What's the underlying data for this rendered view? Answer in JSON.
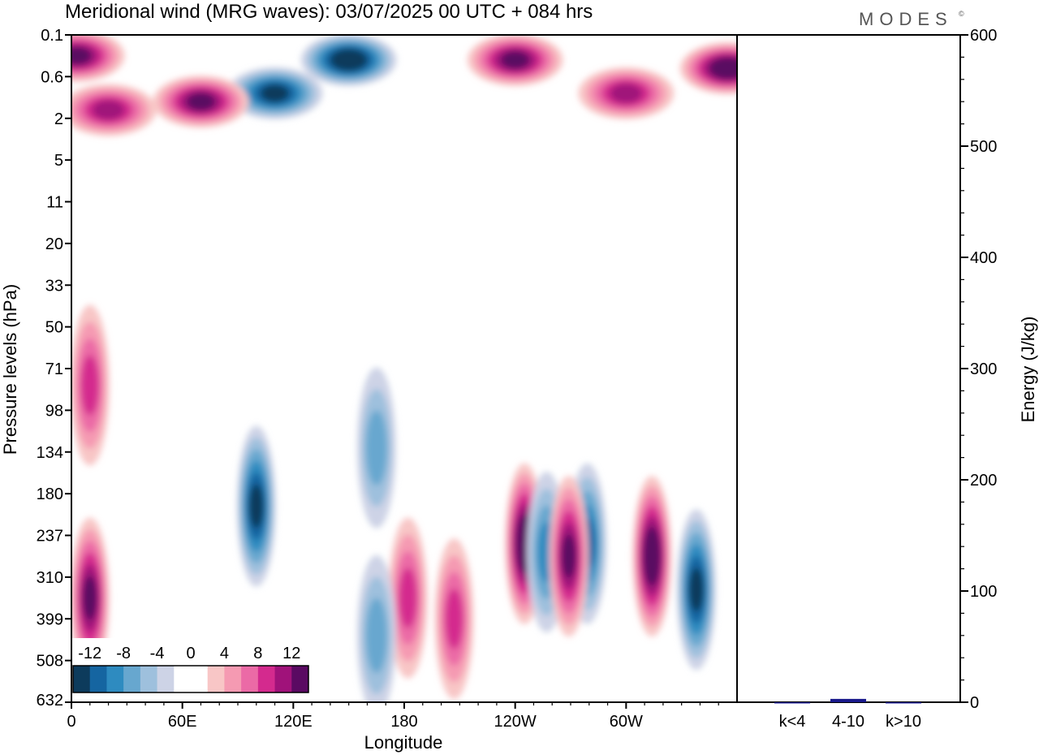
{
  "title": "Meridional wind (MRG waves):  03/07/2025  00 UTC  + 084 hrs",
  "brand": "MODES",
  "brand_mark": "©",
  "chart_data": [
    {
      "type": "heatmap",
      "title": "Meridional wind (MRG waves)",
      "xlabel": "Longitude",
      "ylabel": "Pressure levels (hPa)",
      "x_ticks": [
        "0",
        "60E",
        "120E",
        "180",
        "120W",
        "60W"
      ],
      "x_tick_degrees": [
        0,
        60,
        120,
        180,
        240,
        300
      ],
      "x_range_degrees": [
        0,
        360
      ],
      "y_ticks": [
        "0.1",
        "0.6",
        "2",
        "5",
        "11",
        "20",
        "33",
        "50",
        "71",
        "98",
        "134",
        "180",
        "237",
        "310",
        "399",
        "508",
        "632"
      ],
      "colorbar": {
        "labels": [
          "-12",
          "-8",
          "-4",
          "0",
          "4",
          "8",
          "12"
        ],
        "levels": [
          -14,
          -12,
          -10,
          -8,
          -6,
          -4,
          -2,
          2,
          4,
          6,
          8,
          10,
          12,
          14
        ],
        "colors": [
          "#0d3b5c",
          "#1565a1",
          "#2e8bc0",
          "#67a7cf",
          "#9ec0dd",
          "#cdd3e6",
          "#ffffff",
          "#ffffff",
          "#f8c6c6",
          "#f59ab2",
          "#eb6aa6",
          "#d42a8e",
          "#a0127a",
          "#5a0a62"
        ]
      },
      "features": [
        {
          "type": "positive",
          "lon": 10,
          "level_index": 13.5,
          "peak": 12
        },
        {
          "type": "positive",
          "lon": 10,
          "level_index": 8.4,
          "peak": 8
        },
        {
          "type": "negative",
          "lon": 100,
          "level_index": 11.3,
          "peak": -12
        },
        {
          "type": "negative",
          "lon": 150,
          "level_index": 0.6,
          "peak": -14
        },
        {
          "type": "negative",
          "lon": 110,
          "level_index": 1.4,
          "peak": -12
        },
        {
          "type": "positive",
          "lon": 70,
          "level_index": 1.6,
          "peak": 12
        },
        {
          "type": "positive",
          "lon": 20,
          "level_index": 1.8,
          "peak": 10
        },
        {
          "type": "positive",
          "lon": 245,
          "level_index": 12.2,
          "peak": 14
        },
        {
          "type": "negative",
          "lon": 257,
          "level_index": 12.4,
          "peak": -8
        },
        {
          "type": "negative",
          "lon": 279,
          "level_index": 12.2,
          "peak": -10
        },
        {
          "type": "positive",
          "lon": 269,
          "level_index": 12.5,
          "peak": 12
        },
        {
          "type": "positive",
          "lon": 314,
          "level_index": 12.5,
          "peak": 14
        },
        {
          "type": "negative",
          "lon": 338,
          "level_index": 13.3,
          "peak": -12
        },
        {
          "type": "positive",
          "lon": 240,
          "level_index": 0.6,
          "peak": 12
        },
        {
          "type": "positive",
          "lon": 300,
          "level_index": 1.4,
          "peak": 10
        },
        {
          "type": "positive",
          "lon": 355,
          "level_index": 0.8,
          "peak": 14
        },
        {
          "type": "positive",
          "lon": 3,
          "level_index": 0.5,
          "peak": 12
        },
        {
          "type": "positive",
          "lon": 182,
          "level_index": 13.5,
          "peak": 8
        },
        {
          "type": "positive",
          "lon": 207,
          "level_index": 14.0,
          "peak": 8
        },
        {
          "type": "negative",
          "lon": 165,
          "level_index": 9.9,
          "peak": -6
        },
        {
          "type": "negative",
          "lon": 165,
          "level_index": 14.4,
          "peak": -6
        }
      ]
    },
    {
      "type": "bar",
      "categories": [
        "k<4",
        "4-10",
        "k>10"
      ],
      "values": [
        0,
        3,
        0
      ],
      "ylabel": "Energy (J/kg)",
      "ylim": [
        0,
        600
      ],
      "y_ticks": [
        0,
        100,
        200,
        300,
        400,
        500,
        600
      ],
      "bar_color": "#1a1a8c"
    }
  ]
}
